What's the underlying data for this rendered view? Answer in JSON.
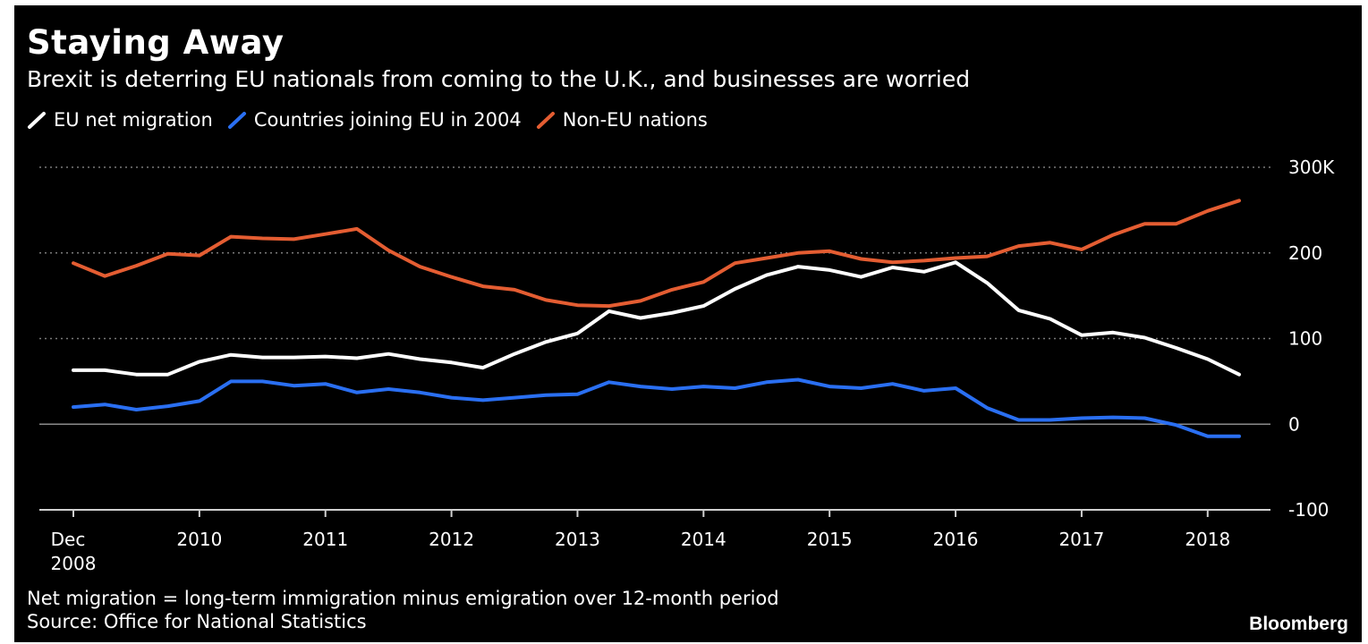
{
  "header": {
    "title": "Staying Away",
    "subtitle": "Brexit is deterring EU nationals from coming to the U.K., and businesses are worried"
  },
  "footer": {
    "note": "Net migration = long-term immigration minus emigration over 12-month period",
    "source": "Source: Office for National Statistics",
    "brand": "Bloomberg"
  },
  "chart_data": {
    "type": "line",
    "title": "Staying Away",
    "subtitle": "Brexit is deterring EU nationals from coming to the U.K., and businesses are worried",
    "xlabel": "",
    "ylabel": "",
    "x_start": "Dec 2008",
    "x_interval": "quarterly",
    "ylim": [
      -100,
      300
    ],
    "y_ticks": [
      {
        "value": 300,
        "label": "300K"
      },
      {
        "value": 200,
        "label": "200"
      },
      {
        "value": 100,
        "label": "100"
      },
      {
        "value": 0,
        "label": "0"
      },
      {
        "value": -100,
        "label": "-100"
      }
    ],
    "x_ticks": [
      {
        "index": 0,
        "label": "Dec",
        "label2": "2008"
      },
      {
        "index": 4,
        "label": "2010"
      },
      {
        "index": 8,
        "label": "2011"
      },
      {
        "index": 12,
        "label": "2012"
      },
      {
        "index": 16,
        "label": "2013"
      },
      {
        "index": 20,
        "label": "2014"
      },
      {
        "index": 24,
        "label": "2015"
      },
      {
        "index": 28,
        "label": "2016"
      },
      {
        "index": 32,
        "label": "2017"
      },
      {
        "index": 36,
        "label": "2018"
      }
    ],
    "grid": true,
    "legend_position": "top-left",
    "series": [
      {
        "name": "EU net migration",
        "color": "#ffffff",
        "values": [
          63,
          63,
          58,
          58,
          73,
          81,
          78,
          78,
          79,
          77,
          82,
          76,
          72,
          66,
          82,
          96,
          106,
          132,
          124,
          130,
          138,
          158,
          174,
          184,
          180,
          172,
          183,
          178,
          189,
          165,
          133,
          123,
          104,
          107,
          101,
          89,
          76,
          58
        ]
      },
      {
        "name": "Countries joining EU in 2004",
        "color": "#2a6ff2",
        "values": [
          20,
          23,
          17,
          21,
          27,
          50,
          50,
          45,
          47,
          37,
          41,
          37,
          31,
          28,
          31,
          34,
          35,
          49,
          44,
          41,
          44,
          42,
          49,
          52,
          44,
          42,
          47,
          39,
          42,
          19,
          5,
          5,
          7,
          8,
          7,
          -1,
          -14,
          -14
        ]
      },
      {
        "name": "Non-EU nations",
        "color": "#e45d32",
        "values": [
          188,
          173,
          185,
          199,
          197,
          219,
          217,
          216,
          222,
          228,
          203,
          184,
          172,
          161,
          157,
          145,
          139,
          138,
          144,
          157,
          166,
          188,
          194,
          200,
          202,
          193,
          189,
          191,
          194,
          196,
          208,
          212,
          204,
          221,
          234,
          234,
          249,
          261
        ]
      }
    ]
  }
}
